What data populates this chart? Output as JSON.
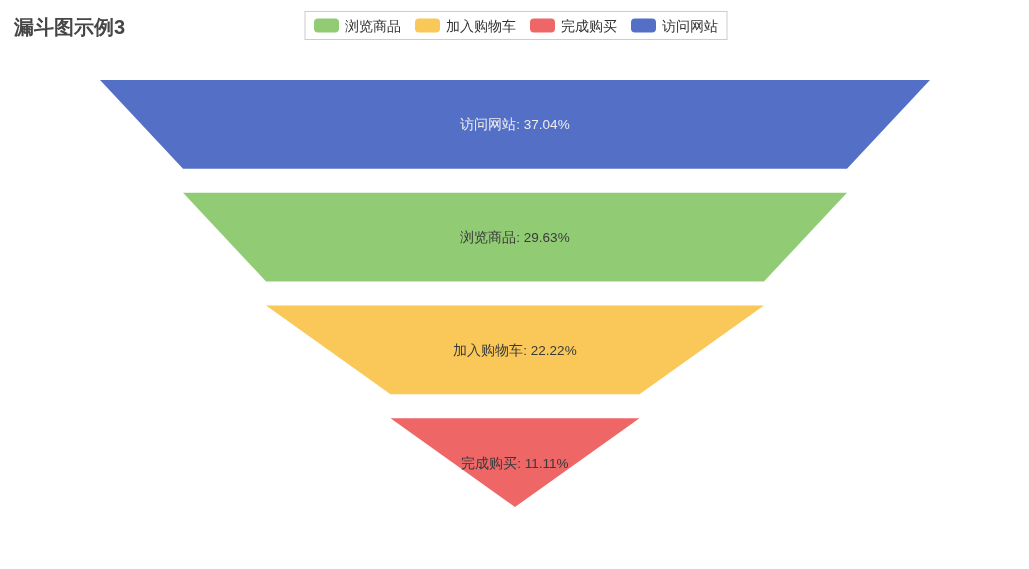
{
  "chart_data": {
    "type": "other",
    "title": "漏斗图示例3",
    "categories": [
      "访问网站",
      "浏览商品",
      "加入购物车",
      "完成购买"
    ],
    "series": [
      {
        "name": "浏览商品",
        "color": "#91cc75",
        "values": [
          null,
          29.63,
          null,
          null
        ],
        "value_labels": [
          null,
          ": 29.63%",
          null,
          null
        ]
      },
      {
        "name": "加入购物车",
        "color": "#fac858",
        "values": [
          null,
          null,
          22.22,
          null
        ],
        "value_labels": [
          null,
          null,
          ": 22.22%",
          null
        ]
      },
      {
        "name": "完成购买",
        "color": "#ee6666",
        "values": [
          null,
          null,
          null,
          11.11
        ],
        "value_labels": [
          null,
          null,
          null,
          ": 11.11%"
        ]
      },
      {
        "name": "访问网站",
        "color": "#5470c6",
        "values": [
          37.04,
          null,
          null,
          null
        ],
        "value_labels": [
          ": 37.04%",
          null,
          null,
          null
        ]
      }
    ],
    "legend": "top"
  }
}
